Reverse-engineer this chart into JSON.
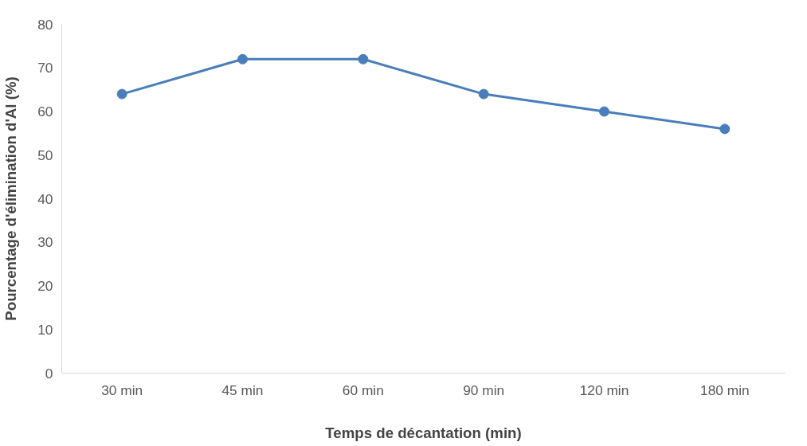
{
  "chart_data": {
    "type": "line",
    "xlabel": "Temps de décantation (min)",
    "ylabel": "Pourcentage d'élimination d'Al (%)",
    "categories": [
      "30 min",
      "45 min",
      "60 min",
      "90 min",
      "120 min",
      "180 min"
    ],
    "series": [
      {
        "color": "#4a7ebb",
        "values": [
          64,
          72,
          72,
          64,
          60,
          56
        ]
      }
    ],
    "ylim": [
      0,
      80
    ],
    "yticks": [
      0,
      10,
      20,
      30,
      40,
      50,
      60,
      70,
      80
    ],
    "grid": false,
    "marker": "circle",
    "line_style": "solid"
  }
}
